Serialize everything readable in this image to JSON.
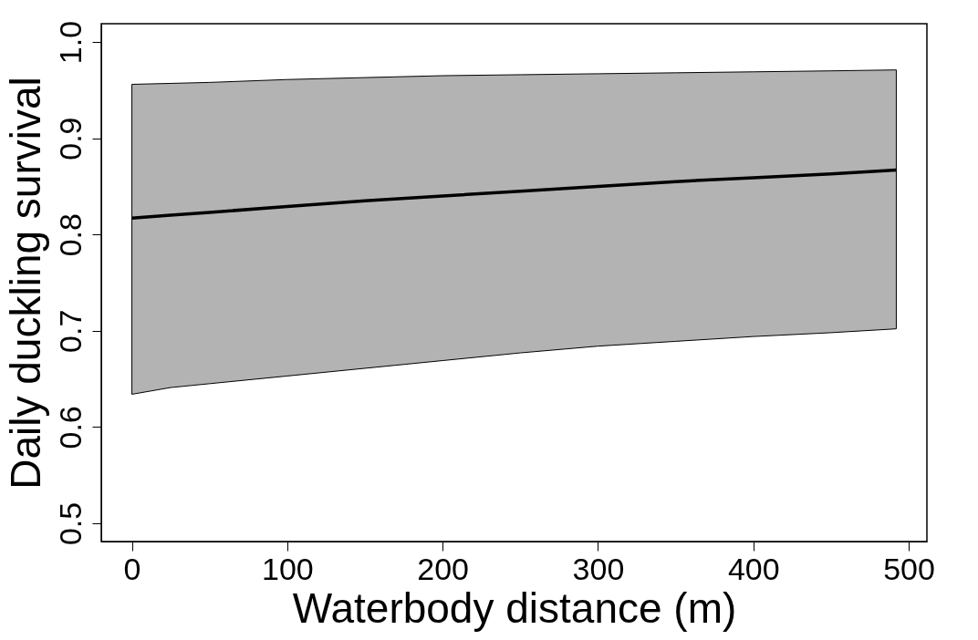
{
  "chart_data": {
    "type": "line",
    "xlabel": "Waterbody distance (m)",
    "ylabel": "Daily duckling survival",
    "x": [
      0,
      25,
      50,
      100,
      150,
      200,
      250,
      300,
      350,
      400,
      450,
      492
    ],
    "series": [
      {
        "color": "#000000",
        "values": [
          0.817,
          0.82,
          0.823,
          0.829,
          0.835,
          0.84,
          0.845,
          0.85,
          0.855,
          0.859,
          0.863,
          0.867
        ],
        "lower": [
          0.634,
          0.641,
          0.645,
          0.653,
          0.661,
          0.669,
          0.677,
          0.684,
          0.689,
          0.694,
          0.698,
          0.702
        ],
        "upper": [
          0.956,
          0.957,
          0.958,
          0.961,
          0.963,
          0.965,
          0.966,
          0.967,
          0.968,
          0.969,
          0.97,
          0.971
        ]
      }
    ],
    "xlim": [
      -19.7,
      511.7
    ],
    "ylim": [
      0.481,
      1.019
    ],
    "xticks": [
      0,
      100,
      200,
      300,
      400,
      500
    ],
    "yticks": [
      0.5,
      0.6,
      0.7,
      0.8,
      0.9,
      {
        "value": 1,
        "label": "1.0"
      }
    ],
    "grid": false,
    "marker": "none",
    "line_style": "solid"
  }
}
